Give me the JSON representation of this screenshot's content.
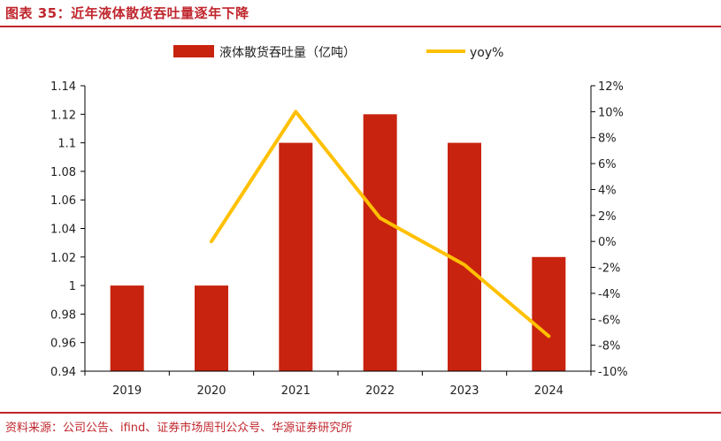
{
  "header": {
    "title": "图表 35：近年液体散货吞吐量逐年下降"
  },
  "footer": {
    "source": "资料来源：公司公告、ifind、证券市场周刊公众号、华源证券研究所"
  },
  "colors": {
    "bar": "#c8230f",
    "line": "#ffc000",
    "accent": "#c0262d"
  },
  "chart_data": {
    "type": "bar",
    "categories": [
      "2019",
      "2020",
      "2021",
      "2022",
      "2023",
      "2024"
    ],
    "series": [
      {
        "name": "液体散货吞吐量（亿吨）",
        "type": "bar",
        "axis": "left",
        "values": [
          1.0,
          1.0,
          1.1,
          1.12,
          1.1,
          1.02
        ]
      },
      {
        "name": "yoy%",
        "type": "line",
        "axis": "right",
        "values": [
          null,
          0,
          10,
          1.8,
          -1.8,
          -7.3
        ]
      }
    ],
    "y_left": {
      "lim": [
        0.94,
        1.14
      ],
      "ticks": [
        "0.94",
        "0.96",
        "0.98",
        "1",
        "1.02",
        "1.04",
        "1.06",
        "1.08",
        "1.1",
        "1.12",
        "1.14"
      ]
    },
    "y_right": {
      "lim": [
        -10,
        12
      ],
      "ticks": [
        "-10%",
        "-8%",
        "-6%",
        "-4%",
        "-2%",
        "0%",
        "2%",
        "4%",
        "6%",
        "8%",
        "10%",
        "12%"
      ]
    },
    "legend": "top-center",
    "grid": false
  }
}
